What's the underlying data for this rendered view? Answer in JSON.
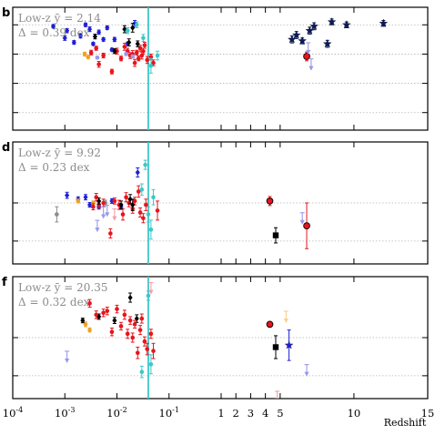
{
  "figure": {
    "xlabel": "Redshift",
    "x_ticks": [
      {
        "value": 0.0001,
        "label": "10",
        "sup": "-4"
      },
      {
        "value": 0.001,
        "label": "10",
        "sup": "-3"
      },
      {
        "value": 0.01,
        "label": "10",
        "sup": "-2"
      },
      {
        "value": 0.1,
        "label": "10",
        "sup": "-1"
      },
      {
        "value": 1,
        "label": "1"
      },
      {
        "value": 2,
        "label": "2"
      },
      {
        "value": 3,
        "label": "3"
      },
      {
        "value": 4,
        "label": "4"
      },
      {
        "value": 5,
        "label": "5"
      },
      {
        "value": 10,
        "label": "10"
      },
      {
        "value": 15,
        "label": "15"
      }
    ],
    "colors": {
      "red": "#e8141c",
      "blue": "#1f1fd6",
      "navy": "#0a1a5e",
      "black": "#000000",
      "orange": "#f0a020",
      "cyan": "#3cc8c8",
      "lavender": "#9a9ae8",
      "gray": "#8c8c8c",
      "pink": "#f2a0a8",
      "light_orange": "#f8d090",
      "light_blue": "#b0b0f0"
    }
  },
  "chart_data": [
    {
      "type": "scatter",
      "panel": "b",
      "annotation_lines": [
        "Low-z ȳ = 2.14",
        "Δ = 0.39 dex"
      ],
      "xscale": "log-linear (log below z=1, linear above)",
      "xlim": [
        0.0001,
        15
      ],
      "ylim": [
        -2.6,
        1.6
      ],
      "hlines_dotted": [
        1,
        0,
        -1,
        -2
      ],
      "vline": {
        "x": 0.04,
        "color": "cyan"
      },
      "series": [
        {
          "color": "blue",
          "marker": "diamond",
          "points": [
            [
              0.0006,
              0.95,
              0.06
            ],
            [
              0.001,
              0.55,
              0.08
            ],
            [
              0.0011,
              0.8,
              0.07
            ],
            [
              0.0015,
              0.4,
              0.06
            ],
            [
              0.002,
              0.62,
              0.07
            ],
            [
              0.0025,
              1.0,
              0.06
            ],
            [
              0.003,
              0.85,
              0.08
            ],
            [
              0.0035,
              0.35,
              0.05
            ],
            [
              0.0045,
              0.75,
              0.07
            ],
            [
              0.0055,
              0.5,
              0.06
            ],
            [
              0.0065,
              0.9,
              0.06
            ],
            [
              0.008,
              0.15,
              0.05
            ],
            [
              0.009,
              0.5,
              0.07
            ],
            [
              0.016,
              0.35,
              0.06
            ],
            [
              0.022,
              1.05,
              0.1
            ]
          ]
        },
        {
          "color": "orange",
          "marker": "diamond",
          "points": [
            [
              0.0024,
              0.0,
              0.06
            ],
            [
              0.0028,
              -0.1,
              0.05
            ]
          ]
        },
        {
          "color": "red",
          "marker": "circle",
          "points": [
            [
              0.0032,
              0.05,
              0.08
            ],
            [
              0.004,
              0.2,
              0.07
            ],
            [
              0.0045,
              -0.35,
              0.1
            ],
            [
              0.0055,
              -0.05,
              0.08
            ],
            [
              0.008,
              -0.6,
              0.08
            ],
            [
              0.01,
              0.1,
              0.1
            ],
            [
              0.012,
              -0.15,
              0.08
            ],
            [
              0.014,
              0.25,
              0.12
            ],
            [
              0.016,
              0.1,
              0.1
            ],
            [
              0.018,
              -0.05,
              0.1
            ],
            [
              0.02,
              0.0,
              0.12
            ],
            [
              0.022,
              -0.3,
              0.12
            ],
            [
              0.024,
              0.05,
              0.08
            ],
            [
              0.026,
              -0.15,
              0.08
            ],
            [
              0.028,
              0.2,
              0.1
            ],
            [
              0.03,
              -0.05,
              0.12
            ],
            [
              0.032,
              0.1,
              0.1
            ],
            [
              0.034,
              0.3,
              0.1
            ],
            [
              0.038,
              -0.2,
              0.12
            ],
            [
              0.045,
              -0.1,
              0.1
            ],
            [
              0.05,
              -0.3,
              0.1
            ]
          ]
        },
        {
          "color": "black",
          "marker": "diamond",
          "points": [
            [
              0.0038,
              0.6,
              0.08
            ],
            [
              0.009,
              0.1,
              0.08
            ],
            [
              0.014,
              0.85,
              0.12
            ],
            [
              0.017,
              0.4,
              0.12
            ],
            [
              0.02,
              0.9,
              0.15
            ],
            [
              0.025,
              0.35,
              0.1
            ]
          ]
        },
        {
          "color": "cyan",
          "marker": "circle",
          "points": [
            [
              0.016,
              0.8,
              0.1
            ],
            [
              0.024,
              1.0,
              0.1
            ],
            [
              0.032,
              0.55,
              0.12
            ],
            [
              0.04,
              1.75,
              0.1
            ],
            [
              0.045,
              -0.4,
              0.25
            ],
            [
              0.06,
              -0.05,
              0.15
            ]
          ]
        },
        {
          "color": "lavender",
          "marker": "circle",
          "points": [
            [
              0.0042,
              -0.12,
              0.04
            ],
            [
              0.015,
              0.0,
              0.05
            ],
            [
              0.02,
              -0.08,
              0.05
            ]
          ]
        },
        {
          "color": "navy",
          "marker": "star",
          "points": [
            [
              5.8,
              0.5,
              0.12
            ],
            [
              6.1,
              0.65,
              0.12
            ],
            [
              6.5,
              0.45,
              0.1
            ],
            [
              7.0,
              0.8,
              0.12
            ],
            [
              7.3,
              0.95,
              0.12
            ],
            [
              8.2,
              0.35,
              0.12
            ],
            [
              8.5,
              1.1,
              0.1
            ],
            [
              9.5,
              1.0,
              0.1
            ],
            [
              12.0,
              1.05,
              0.1
            ]
          ]
        },
        {
          "color": "red",
          "marker": "circle_outlined",
          "points": [
            [
              6.8,
              -0.08,
              0.15
            ]
          ]
        },
        {
          "color": "lavender",
          "marker": "arrow_down",
          "points": [
            [
              6.9,
              0.2
            ],
            [
              7.1,
              -0.35
            ]
          ]
        }
      ]
    },
    {
      "type": "scatter",
      "panel": "d",
      "annotation_lines": [
        "Low-z ȳ = 9.92",
        "Δ = 0.23 dex"
      ],
      "xscale": "log-linear (log below z=1, linear above)",
      "xlim": [
        0.0001,
        15
      ],
      "ylim": [
        -1.6,
        1.6
      ],
      "hlines_dotted": [
        0,
        -1
      ],
      "vline": {
        "x": 0.04,
        "color": "cyan"
      },
      "series": [
        {
          "color": "blue",
          "marker": "diamond",
          "points": [
            [
              0.0011,
              0.2,
              0.08
            ],
            [
              0.0018,
              0.1,
              0.06
            ],
            [
              0.0025,
              0.15,
              0.07
            ],
            [
              0.003,
              -0.05,
              0.06
            ],
            [
              0.0045,
              -0.1,
              0.06
            ],
            [
              0.008,
              0.05,
              0.06
            ],
            [
              0.012,
              -0.1,
              0.07
            ],
            [
              0.025,
              0.8,
              0.12
            ]
          ]
        },
        {
          "color": "gray",
          "marker": "circle",
          "points": [
            [
              0.0007,
              -0.3,
              0.2
            ],
            [
              0.006,
              0.0,
              0.07
            ]
          ]
        },
        {
          "color": "orange",
          "marker": "circle",
          "points": [
            [
              0.0018,
              0.05,
              0.05
            ],
            [
              0.0035,
              0.0,
              0.05
            ]
          ]
        },
        {
          "color": "red",
          "marker": "circle",
          "points": [
            [
              0.0035,
              -0.1,
              0.08
            ],
            [
              0.004,
              0.15,
              0.1
            ],
            [
              0.0045,
              -0.05,
              0.08
            ],
            [
              0.0055,
              0.0,
              0.1
            ],
            [
              0.0075,
              -0.8,
              0.12
            ],
            [
              0.009,
              0.05,
              0.08
            ],
            [
              0.011,
              -0.05,
              0.12
            ],
            [
              0.013,
              -0.3,
              0.15
            ],
            [
              0.015,
              0.15,
              0.12
            ],
            [
              0.017,
              0.0,
              0.1
            ],
            [
              0.02,
              -0.15,
              0.12
            ],
            [
              0.022,
              0.05,
              0.1
            ],
            [
              0.026,
              0.3,
              0.15
            ],
            [
              0.028,
              -0.25,
              0.12
            ],
            [
              0.032,
              -0.4,
              0.12
            ],
            [
              0.036,
              -0.05,
              0.15
            ],
            [
              0.06,
              -0.2,
              0.25
            ]
          ]
        },
        {
          "color": "black",
          "marker": "diamond",
          "points": [
            [
              0.0045,
              0.05,
              0.08
            ],
            [
              0.012,
              -0.05,
              0.1
            ],
            [
              0.018,
              0.1,
              0.12
            ],
            [
              0.02,
              -0.05,
              0.15
            ]
          ]
        },
        {
          "color": "cyan",
          "marker": "circle",
          "points": [
            [
              0.03,
              0.35,
              0.15
            ],
            [
              0.035,
              1.0,
              0.12
            ],
            [
              0.04,
              -0.3,
              0.2
            ],
            [
              0.045,
              -0.7,
              0.25
            ],
            [
              0.05,
              0.15,
              0.2
            ]
          ]
        },
        {
          "color": "lavender",
          "marker": "arrow_down",
          "points": [
            [
              0.0042,
              -0.6
            ],
            [
              0.0055,
              -0.25
            ],
            [
              0.0065,
              -0.2
            ]
          ]
        },
        {
          "color": "pink",
          "marker": "arrow_down",
          "points": [
            [
              0.009,
              -0.3
            ]
          ]
        },
        {
          "color": "red",
          "marker": "circle_outlined",
          "points": [
            [
              4.3,
              0.05,
              0.12
            ],
            [
              6.8,
              -0.6,
              0.6
            ]
          ]
        },
        {
          "color": "black",
          "marker": "square",
          "points": [
            [
              4.7,
              -0.85,
              0.2
            ]
          ]
        },
        {
          "color": "lavender",
          "marker": "arrow_down",
          "points": [
            [
              6.5,
              -0.4
            ]
          ]
        }
      ]
    },
    {
      "type": "scatter",
      "panel": "f",
      "annotation_lines": [
        "Low-z ȳ = 20.35",
        "Δ = 0.32 dex"
      ],
      "xscale": "log-linear (log below z=1, linear above)",
      "xlim": [
        0.0001,
        15
      ],
      "ylim": [
        -1.6,
        1.6
      ],
      "hlines_dotted": [
        0,
        -1
      ],
      "vline": {
        "x": 0.04,
        "color": "cyan"
      },
      "series": [
        {
          "color": "lavender",
          "marker": "arrow_down",
          "points": [
            [
              0.0011,
              -0.5
            ]
          ]
        },
        {
          "color": "orange",
          "marker": "diamond",
          "points": [
            [
              0.0025,
              0.35,
              0.06
            ],
            [
              0.003,
              0.2,
              0.05
            ]
          ]
        },
        {
          "color": "black",
          "marker": "diamond",
          "points": [
            [
              0.0022,
              0.45,
              0.06
            ],
            [
              0.0045,
              0.55,
              0.07
            ],
            [
              0.009,
              0.45,
              0.08
            ],
            [
              0.018,
              1.05,
              0.12
            ],
            [
              0.024,
              0.5,
              0.1
            ]
          ]
        },
        {
          "color": "red",
          "marker": "circle",
          "points": [
            [
              0.003,
              0.9,
              0.1
            ],
            [
              0.004,
              0.6,
              0.1
            ],
            [
              0.0055,
              0.65,
              0.1
            ],
            [
              0.0065,
              0.7,
              0.1
            ],
            [
              0.008,
              0.15,
              0.1
            ],
            [
              0.01,
              0.75,
              0.1
            ],
            [
              0.012,
              0.3,
              0.1
            ],
            [
              0.014,
              0.6,
              0.12
            ],
            [
              0.016,
              0.1,
              0.12
            ],
            [
              0.018,
              0.45,
              0.1
            ],
            [
              0.02,
              0.0,
              0.12
            ],
            [
              0.022,
              0.35,
              0.1
            ],
            [
              0.025,
              -0.4,
              0.15
            ],
            [
              0.028,
              0.2,
              0.12
            ],
            [
              0.03,
              0.5,
              0.12
            ],
            [
              0.034,
              -0.1,
              0.12
            ],
            [
              0.038,
              -0.3,
              0.15
            ],
            [
              0.045,
              0.1,
              0.12
            ],
            [
              0.05,
              -0.35,
              0.2
            ]
          ]
        },
        {
          "color": "cyan",
          "marker": "circle",
          "points": [
            [
              0.03,
              -0.9,
              0.15
            ],
            [
              0.04,
              1.1,
              0.12
            ],
            [
              0.045,
              -0.7,
              0.25
            ]
          ]
        },
        {
          "color": "pink",
          "marker": "arrow_down",
          "points": [
            [
              0.045,
              1.3
            ]
          ]
        },
        {
          "color": "red",
          "marker": "circle_outlined",
          "points": [
            [
              4.3,
              0.35,
              0.05
            ]
          ]
        },
        {
          "color": "black",
          "marker": "square",
          "points": [
            [
              4.7,
              -0.25,
              0.3
            ]
          ]
        },
        {
          "color": "blue",
          "marker": "star",
          "points": [
            [
              5.6,
              -0.2,
              0.4
            ]
          ]
        },
        {
          "color": "light_orange",
          "marker": "arrow_down",
          "points": [
            [
              5.4,
              0.55
            ]
          ]
        },
        {
          "color": "lavender",
          "marker": "arrow_down",
          "points": [
            [
              6.8,
              -0.85
            ]
          ]
        },
        {
          "color": "pink",
          "marker": "arrow_down",
          "points": [
            [
              4.8,
              -1.55
            ]
          ]
        }
      ]
    }
  ]
}
